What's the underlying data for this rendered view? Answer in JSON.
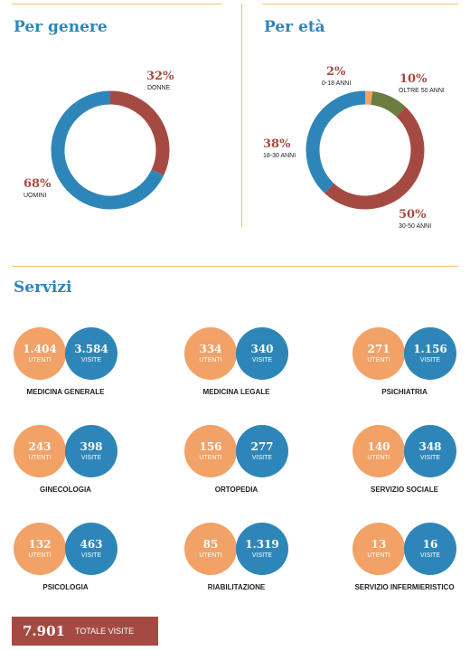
{
  "colors": {
    "blue": "#2e86b8",
    "red": "#a54a42",
    "orange": "#f2a167",
    "green": "#6b7d3f",
    "gold": "#f0c56a"
  },
  "chart_data": [
    {
      "type": "pie",
      "title": "Per genere",
      "slices": [
        {
          "label": "DONNE",
          "value": 32,
          "value_label": "32%",
          "color": "#a54a42"
        },
        {
          "label": "UOMINI",
          "value": 68,
          "value_label": "68%",
          "color": "#2e86b8"
        }
      ]
    },
    {
      "type": "pie",
      "title": "Per età",
      "slices": [
        {
          "label": "0-18 ANNI",
          "value": 2,
          "value_label": "2%",
          "color": "#f2a167"
        },
        {
          "label": "OLTRE 50 ANNI",
          "value": 10,
          "value_label": "10%",
          "color": "#6b7d3f"
        },
        {
          "label": "30-50 ANNI",
          "value": 50,
          "value_label": "50%",
          "color": "#a54a42"
        },
        {
          "label": "18-30 ANNI",
          "value": 38,
          "value_label": "38%",
          "color": "#2e86b8"
        }
      ]
    },
    {
      "type": "table",
      "title": "Servizi",
      "columns": [
        "UTENTI",
        "VISITE"
      ],
      "rows": [
        {
          "name": "MEDICINA GENERALE",
          "utenti": "1.404",
          "visite": "3.584"
        },
        {
          "name": "MEDICINA LEGALE",
          "utenti": "334",
          "visite": "340"
        },
        {
          "name": "PSICHIATRIA",
          "utenti": "271",
          "visite": "1.156"
        },
        {
          "name": "GINECOLOGIA",
          "utenti": "243",
          "visite": "398"
        },
        {
          "name": "ORTOPEDIA",
          "utenti": "156",
          "visite": "277"
        },
        {
          "name": "SERVIZIO SOCIALE",
          "utenti": "140",
          "visite": "348"
        },
        {
          "name": "PSICOLOGIA",
          "utenti": "132",
          "visite": "463"
        },
        {
          "name": "RIABILITAZIONE",
          "utenti": "85",
          "visite": "1.319"
        },
        {
          "name": "SERVIZIO INFERMIERISTICO",
          "utenti": "13",
          "visite": "16"
        }
      ],
      "total": {
        "value": "7.901",
        "label": "TOTALE VISITE"
      }
    }
  ]
}
